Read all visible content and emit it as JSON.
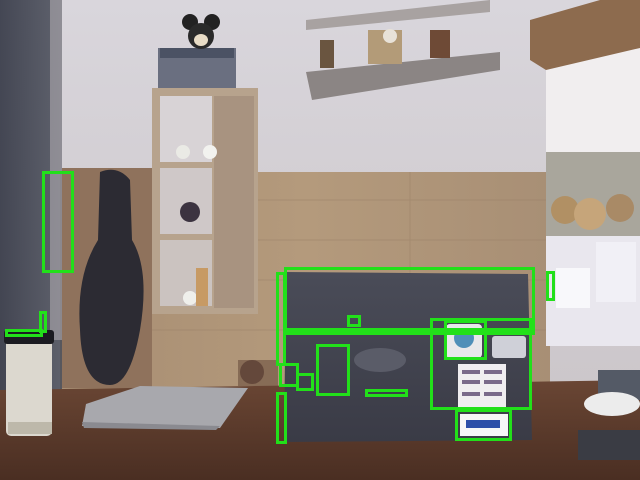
{
  "photo": {
    "description_icon": "webcam-photo"
  },
  "overlay": {
    "color": "#22e01a",
    "box_count_label": ""
  }
}
